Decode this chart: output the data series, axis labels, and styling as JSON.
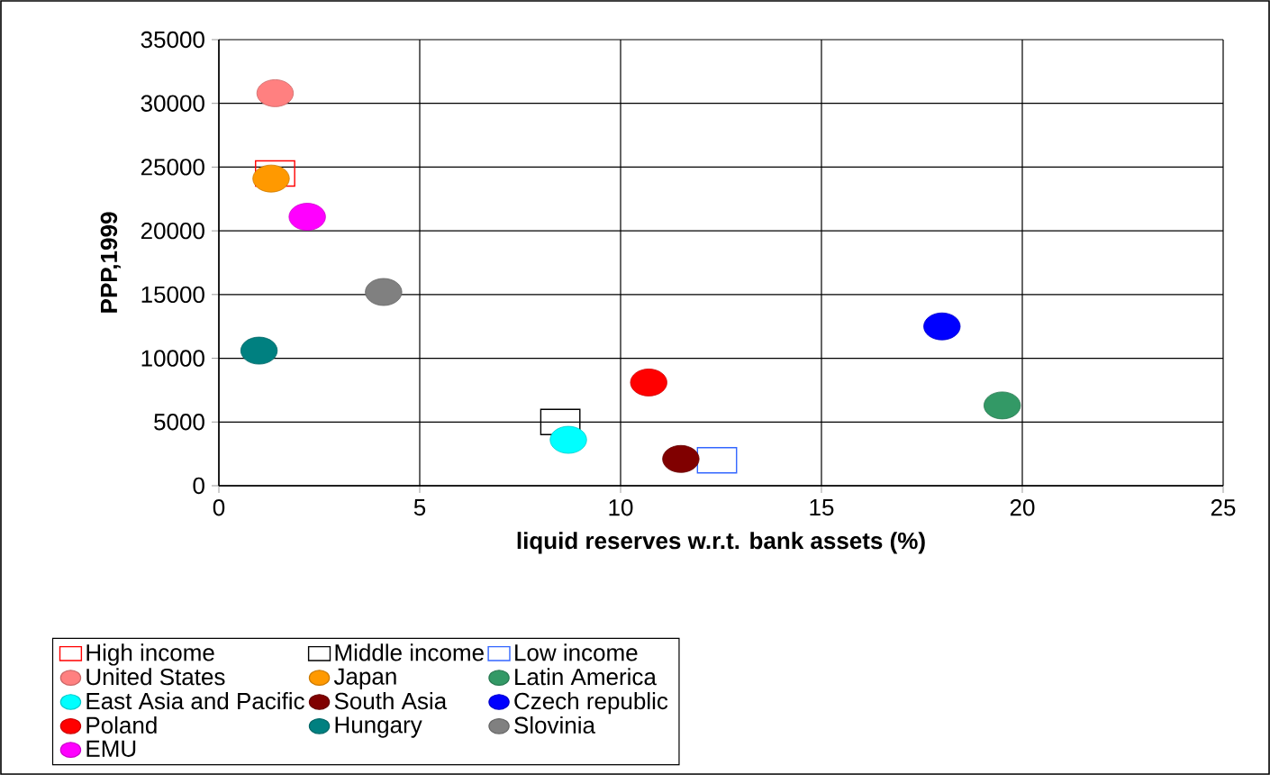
{
  "chart_data": {
    "type": "scatter",
    "xlabel": "liquid reserves w.r.t. bank assets (%)",
    "ylabel": "PPP,1999",
    "xlim": [
      0,
      25
    ],
    "ylim": [
      0,
      35000
    ],
    "xticks": [
      0,
      5,
      10,
      15,
      20,
      25
    ],
    "yticks": [
      0,
      5000,
      10000,
      15000,
      20000,
      25000,
      30000,
      35000
    ],
    "grid": true,
    "legend": "bottom",
    "series": [
      {
        "name": "High income",
        "color": "#ff0000",
        "marker": "square",
        "x": [
          1.4
        ],
        "values": [
          24500
        ]
      },
      {
        "name": "Middle income",
        "color": "#000000",
        "marker": "square",
        "x": [
          8.5
        ],
        "values": [
          5000
        ]
      },
      {
        "name": "Low income",
        "color": "#3366ff",
        "marker": "square",
        "x": [
          12.4
        ],
        "values": [
          2000
        ]
      },
      {
        "name": "United States",
        "color": "#ff8080",
        "marker": "circle",
        "x": [
          1.4
        ],
        "values": [
          30800
        ]
      },
      {
        "name": "Japan",
        "color": "#ff9900",
        "marker": "circle",
        "x": [
          1.3
        ],
        "values": [
          24100
        ]
      },
      {
        "name": "Latin America",
        "color": "#339966",
        "marker": "circle",
        "x": [
          19.5
        ],
        "values": [
          6300
        ]
      },
      {
        "name": "East Asia and Pacific",
        "color": "#00ffff",
        "marker": "circle",
        "x": [
          8.7
        ],
        "values": [
          3600
        ]
      },
      {
        "name": "South Asia",
        "color": "#800000",
        "marker": "circle",
        "x": [
          11.5
        ],
        "values": [
          2100
        ]
      },
      {
        "name": "Czech republic",
        "color": "#0000ff",
        "marker": "circle",
        "x": [
          18.0
        ],
        "values": [
          12500
        ]
      },
      {
        "name": "Poland",
        "color": "#ff0000",
        "marker": "circle",
        "x": [
          10.7
        ],
        "values": [
          8100
        ]
      },
      {
        "name": "Hungary",
        "color": "#008080",
        "marker": "circle",
        "x": [
          1.0
        ],
        "values": [
          10600
        ]
      },
      {
        "name": "Slovinia",
        "color": "#808080",
        "marker": "circle",
        "x": [
          4.1
        ],
        "values": [
          15200
        ]
      },
      {
        "name": "EMU",
        "color": "#ff00ff",
        "marker": "circle",
        "x": [
          2.2
        ],
        "values": [
          21100
        ]
      }
    ]
  }
}
